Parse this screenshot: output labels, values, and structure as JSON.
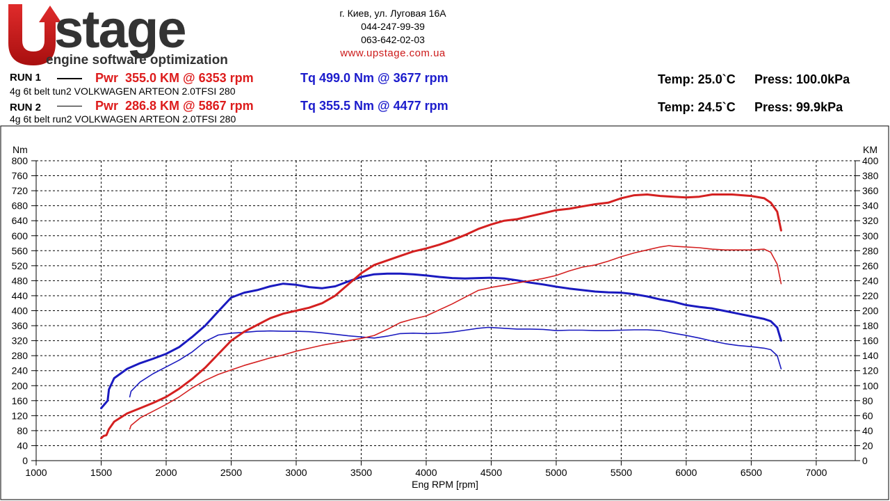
{
  "header": {
    "logo_text": "stage",
    "logo_letter": "U",
    "tagline": "engine software optimization",
    "address": "г. Киев, ул. Луговая 16А",
    "phone1": "044-247-99-39",
    "phone2": "063-642-02-03",
    "url": "www.upstage.com.ua"
  },
  "runs": [
    {
      "label": "RUN 1",
      "description": "4g 6t belt tun2 VOLKWAGEN ARTEON 2.0TFSI 280",
      "power": "Pwr  355.0 KM @ 6353 rpm",
      "torque": "Tq 499.0 Nm @ 3677 rpm",
      "temp": "Temp: 25.0`C",
      "press": "Press: 100.0kPa"
    },
    {
      "label": "RUN 2",
      "description": "4g 6t belt run2 VOLKWAGEN ARTEON 2.0TFSI 280",
      "power": "Pwr  286.8 KM @ 5867 rpm",
      "torque": "Tq 355.5 Nm @ 4477 rpm",
      "temp": "Temp: 24.5`C",
      "press": "Press: 99.9kPa"
    }
  ],
  "colors": {
    "power": "#d42020",
    "torque": "#1a1abf",
    "grid": "#000000"
  },
  "chart_data": {
    "type": "line",
    "xlabel": "Eng RPM [rpm]",
    "ylabel_left": "Nm",
    "ylabel_right": "KM",
    "xlim": [
      1000,
      7300
    ],
    "ylim_left": [
      0,
      800
    ],
    "ylim_right": [
      0,
      400
    ],
    "x_ticks": [
      1000,
      1500,
      2000,
      2500,
      3000,
      3500,
      4000,
      4500,
      5000,
      5500,
      6000,
      6500,
      7000
    ],
    "y_ticks_left": [
      0,
      40,
      80,
      120,
      160,
      200,
      240,
      280,
      320,
      360,
      400,
      440,
      480,
      520,
      560,
      600,
      640,
      680,
      720,
      760,
      800
    ],
    "y_ticks_right": [
      0,
      20,
      40,
      60,
      80,
      100,
      120,
      140,
      160,
      180,
      200,
      220,
      240,
      260,
      280,
      300,
      320,
      340,
      360,
      380,
      400
    ],
    "grid": true,
    "series": [
      {
        "name": "RUN 1 Tq",
        "axis": "left",
        "color": "#1a1abf",
        "width": 3,
        "points": [
          [
            1500,
            140
          ],
          [
            1530,
            152
          ],
          [
            1550,
            160
          ],
          [
            1560,
            190
          ],
          [
            1600,
            220
          ],
          [
            1700,
            245
          ],
          [
            1800,
            260
          ],
          [
            1900,
            272
          ],
          [
            2000,
            285
          ],
          [
            2100,
            303
          ],
          [
            2200,
            330
          ],
          [
            2300,
            360
          ],
          [
            2400,
            398
          ],
          [
            2500,
            435
          ],
          [
            2600,
            448
          ],
          [
            2700,
            455
          ],
          [
            2800,
            465
          ],
          [
            2900,
            472
          ],
          [
            3000,
            469
          ],
          [
            3100,
            463
          ],
          [
            3200,
            460
          ],
          [
            3300,
            465
          ],
          [
            3400,
            478
          ],
          [
            3500,
            490
          ],
          [
            3600,
            497
          ],
          [
            3700,
            499
          ],
          [
            3800,
            499
          ],
          [
            3900,
            497
          ],
          [
            4000,
            494
          ],
          [
            4100,
            490
          ],
          [
            4200,
            487
          ],
          [
            4300,
            486
          ],
          [
            4400,
            487
          ],
          [
            4500,
            488
          ],
          [
            4600,
            486
          ],
          [
            4700,
            481
          ],
          [
            4800,
            475
          ],
          [
            4900,
            470
          ],
          [
            5000,
            464
          ],
          [
            5100,
            459
          ],
          [
            5200,
            455
          ],
          [
            5300,
            451
          ],
          [
            5400,
            449
          ],
          [
            5500,
            448
          ],
          [
            5600,
            444
          ],
          [
            5700,
            438
          ],
          [
            5800,
            430
          ],
          [
            5900,
            424
          ],
          [
            6000,
            415
          ],
          [
            6100,
            410
          ],
          [
            6200,
            406
          ],
          [
            6300,
            399
          ],
          [
            6400,
            392
          ],
          [
            6500,
            385
          ],
          [
            6600,
            378
          ],
          [
            6650,
            372
          ],
          [
            6700,
            355
          ],
          [
            6730,
            320
          ]
        ]
      },
      {
        "name": "RUN 2 Tq",
        "axis": "left",
        "color": "#1a1abf",
        "width": 1.6,
        "points": [
          [
            1720,
            170
          ],
          [
            1730,
            185
          ],
          [
            1800,
            210
          ],
          [
            1900,
            232
          ],
          [
            2000,
            250
          ],
          [
            2100,
            268
          ],
          [
            2200,
            290
          ],
          [
            2300,
            318
          ],
          [
            2400,
            335
          ],
          [
            2500,
            340
          ],
          [
            2600,
            342
          ],
          [
            2700,
            345
          ],
          [
            2800,
            346
          ],
          [
            2900,
            345
          ],
          [
            3000,
            345
          ],
          [
            3100,
            344
          ],
          [
            3200,
            341
          ],
          [
            3300,
            337
          ],
          [
            3400,
            333
          ],
          [
            3500,
            330
          ],
          [
            3600,
            327
          ],
          [
            3700,
            332
          ],
          [
            3800,
            339
          ],
          [
            3900,
            340
          ],
          [
            4000,
            339
          ],
          [
            4100,
            340
          ],
          [
            4200,
            343
          ],
          [
            4300,
            348
          ],
          [
            4400,
            353
          ],
          [
            4477,
            355.5
          ],
          [
            4500,
            355
          ],
          [
            4600,
            353
          ],
          [
            4700,
            351
          ],
          [
            4800,
            351
          ],
          [
            4900,
            350
          ],
          [
            5000,
            347
          ],
          [
            5100,
            348
          ],
          [
            5200,
            348
          ],
          [
            5300,
            347
          ],
          [
            5400,
            347
          ],
          [
            5500,
            348
          ],
          [
            5600,
            349
          ],
          [
            5700,
            349
          ],
          [
            5800,
            347
          ],
          [
            5900,
            340
          ],
          [
            6000,
            334
          ],
          [
            6100,
            327
          ],
          [
            6200,
            319
          ],
          [
            6300,
            312
          ],
          [
            6400,
            307
          ],
          [
            6500,
            304
          ],
          [
            6600,
            300
          ],
          [
            6650,
            296
          ],
          [
            6700,
            280
          ],
          [
            6730,
            245
          ]
        ]
      },
      {
        "name": "RUN 1 Pwr",
        "axis": "right",
        "color": "#d42020",
        "width": 3,
        "points": [
          [
            1500,
            30
          ],
          [
            1520,
            33
          ],
          [
            1540,
            34
          ],
          [
            1560,
            42
          ],
          [
            1600,
            52
          ],
          [
            1700,
            63
          ],
          [
            1800,
            70
          ],
          [
            1900,
            77
          ],
          [
            2000,
            85
          ],
          [
            2100,
            96
          ],
          [
            2200,
            109
          ],
          [
            2300,
            124
          ],
          [
            2400,
            142
          ],
          [
            2500,
            160
          ],
          [
            2600,
            172
          ],
          [
            2700,
            181
          ],
          [
            2800,
            190
          ],
          [
            2900,
            196
          ],
          [
            3000,
            200
          ],
          [
            3100,
            204
          ],
          [
            3200,
            210
          ],
          [
            3300,
            220
          ],
          [
            3400,
            235
          ],
          [
            3500,
            250
          ],
          [
            3600,
            261
          ],
          [
            3700,
            267
          ],
          [
            3800,
            273
          ],
          [
            3900,
            279
          ],
          [
            4000,
            283
          ],
          [
            4100,
            288
          ],
          [
            4200,
            294
          ],
          [
            4300,
            301
          ],
          [
            4400,
            309
          ],
          [
            4500,
            315
          ],
          [
            4600,
            320
          ],
          [
            4700,
            322
          ],
          [
            4800,
            326
          ],
          [
            4900,
            330
          ],
          [
            5000,
            334
          ],
          [
            5100,
            336
          ],
          [
            5200,
            339
          ],
          [
            5300,
            342
          ],
          [
            5400,
            344
          ],
          [
            5500,
            350
          ],
          [
            5600,
            354
          ],
          [
            5700,
            355
          ],
          [
            5800,
            353
          ],
          [
            5900,
            352
          ],
          [
            6000,
            351
          ],
          [
            6100,
            352
          ],
          [
            6200,
            355
          ],
          [
            6353,
            355
          ],
          [
            6500,
            353
          ],
          [
            6600,
            350
          ],
          [
            6650,
            344
          ],
          [
            6700,
            332
          ],
          [
            6730,
            307
          ]
        ]
      },
      {
        "name": "RUN 2 Pwr",
        "axis": "right",
        "color": "#d42020",
        "width": 1.6,
        "points": [
          [
            1720,
            42
          ],
          [
            1730,
            47
          ],
          [
            1800,
            57
          ],
          [
            1900,
            66
          ],
          [
            2000,
            75
          ],
          [
            2100,
            85
          ],
          [
            2200,
            97
          ],
          [
            2300,
            107
          ],
          [
            2400,
            115
          ],
          [
            2500,
            121
          ],
          [
            2600,
            127
          ],
          [
            2700,
            132
          ],
          [
            2800,
            137
          ],
          [
            2900,
            141
          ],
          [
            3000,
            146
          ],
          [
            3100,
            150
          ],
          [
            3200,
            154
          ],
          [
            3300,
            157
          ],
          [
            3400,
            160
          ],
          [
            3500,
            163
          ],
          [
            3600,
            167
          ],
          [
            3700,
            175
          ],
          [
            3800,
            184
          ],
          [
            3900,
            189
          ],
          [
            4000,
            193
          ],
          [
            4100,
            201
          ],
          [
            4200,
            209
          ],
          [
            4300,
            218
          ],
          [
            4400,
            227
          ],
          [
            4500,
            231
          ],
          [
            4600,
            234
          ],
          [
            4700,
            237
          ],
          [
            4800,
            240
          ],
          [
            4900,
            243
          ],
          [
            5000,
            247
          ],
          [
            5100,
            253
          ],
          [
            5200,
            258
          ],
          [
            5300,
            261
          ],
          [
            5400,
            266
          ],
          [
            5500,
            272
          ],
          [
            5600,
            277
          ],
          [
            5700,
            281
          ],
          [
            5800,
            285
          ],
          [
            5867,
            286.8
          ],
          [
            5900,
            286
          ],
          [
            6000,
            285
          ],
          [
            6100,
            284
          ],
          [
            6200,
            282
          ],
          [
            6300,
            281
          ],
          [
            6400,
            281
          ],
          [
            6500,
            281
          ],
          [
            6600,
            282
          ],
          [
            6650,
            278
          ],
          [
            6700,
            262
          ],
          [
            6730,
            236
          ]
        ]
      }
    ]
  }
}
